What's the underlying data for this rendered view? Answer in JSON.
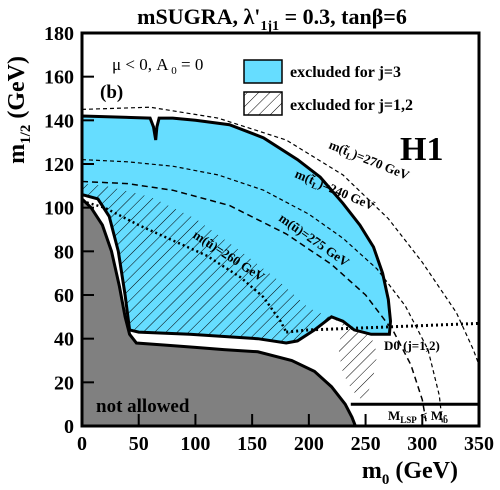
{
  "chart_data": {
    "type": "area",
    "title_main": "mSUGRA, λ'",
    "title_sub": "1j1",
    "title_tail": " = 0.3, tanβ=6",
    "xlabel_main": "m",
    "xlabel_sub": "0",
    "xlabel_tail": " (GeV)",
    "ylabel_main": "m",
    "ylabel_sub": "1/2",
    "ylabel_tail": " (GeV)",
    "xlim": [
      0,
      350
    ],
    "ylim": [
      0,
      180
    ],
    "x_ticks": [
      0,
      50,
      100,
      150,
      200,
      250,
      300,
      350
    ],
    "y_ticks": [
      0,
      20,
      40,
      60,
      80,
      100,
      120,
      140,
      160,
      180
    ],
    "params_label": "μ < 0, A 0 = 0",
    "panel_label": "(b)",
    "experiment_label": "H1",
    "legend": [
      {
        "name": "excluded for j=3",
        "style": "fill",
        "color": "#66ddff"
      },
      {
        "name": "excluded for j=1,2",
        "style": "hatch"
      }
    ],
    "colors": {
      "excluded_j3": "#66ddff",
      "not_allowed": "#808080",
      "frame": "#000000"
    },
    "regions": {
      "excluded_j3": [
        [
          0,
          142
        ],
        [
          60,
          141
        ],
        [
          63,
          137
        ],
        [
          65,
          131
        ],
        [
          66,
          137
        ],
        [
          68,
          141
        ],
        [
          80,
          141
        ],
        [
          100,
          140
        ],
        [
          130,
          138
        ],
        [
          160,
          132
        ],
        [
          190,
          122
        ],
        [
          210,
          114
        ],
        [
          230,
          102
        ],
        [
          245,
          92
        ],
        [
          257,
          82
        ],
        [
          265,
          70
        ],
        [
          270,
          58
        ],
        [
          272,
          48
        ],
        [
          271,
          42
        ],
        [
          255,
          42
        ],
        [
          240,
          44
        ],
        [
          230,
          48
        ],
        [
          220,
          50
        ],
        [
          205,
          44
        ],
        [
          190,
          39
        ],
        [
          180,
          38
        ],
        [
          155,
          40
        ],
        [
          95,
          42
        ],
        [
          50,
          43
        ],
        [
          42,
          44
        ],
        [
          38,
          60
        ],
        [
          32,
          80
        ],
        [
          24,
          96
        ],
        [
          14,
          104
        ],
        [
          0,
          106
        ]
      ],
      "excluded_j12": [
        [
          0,
          111
        ],
        [
          20,
          110
        ],
        [
          60,
          105
        ],
        [
          100,
          95
        ],
        [
          140,
          80
        ],
        [
          170,
          68
        ],
        [
          200,
          54
        ],
        [
          222,
          49
        ],
        [
          230,
          46
        ],
        [
          226,
          36
        ],
        [
          229,
          26
        ],
        [
          234,
          20
        ],
        [
          239,
          16
        ],
        [
          244,
          13
        ],
        [
          248,
          12
        ],
        [
          252,
          15
        ],
        [
          257,
          23
        ],
        [
          260,
          32
        ],
        [
          258,
          38
        ],
        [
          252,
          42
        ],
        [
          240,
          44
        ],
        [
          230,
          48
        ],
        [
          220,
          50
        ],
        [
          205,
          44
        ],
        [
          190,
          39
        ],
        [
          180,
          38
        ],
        [
          155,
          40
        ],
        [
          95,
          42
        ],
        [
          50,
          43
        ],
        [
          42,
          44
        ],
        [
          38,
          60
        ],
        [
          32,
          80
        ],
        [
          24,
          96
        ],
        [
          14,
          104
        ],
        [
          0,
          106
        ]
      ],
      "not_allowed": [
        [
          0,
          104
        ],
        [
          8,
          100
        ],
        [
          18,
          92
        ],
        [
          26,
          80
        ],
        [
          33,
          64
        ],
        [
          38,
          50
        ],
        [
          42,
          42
        ],
        [
          48,
          38
        ],
        [
          75,
          37
        ],
        [
          100,
          36
        ],
        [
          125,
          35
        ],
        [
          155,
          34
        ],
        [
          185,
          30
        ],
        [
          205,
          25
        ],
        [
          220,
          18
        ],
        [
          232,
          10
        ],
        [
          238,
          4
        ],
        [
          241,
          0
        ],
        [
          0,
          0
        ]
      ]
    },
    "annotations": [
      {
        "text": "m(t̃",
        "sub": "L",
        "tail": ")=270 GeV"
      },
      {
        "text": "m(t̃",
        "sub": "L",
        "tail": ")=240 GeV"
      },
      {
        "text": "m(ũ)=275 GeV"
      },
      {
        "text": "m(ũ)=260 GeV"
      },
      {
        "text": "D0 (j=1,2)"
      },
      {
        "text": "M",
        "sub": "LSP",
        "mid": " < M",
        "sub2": "b",
        "tilde": true
      },
      {
        "text": "not allowed"
      }
    ],
    "curves": {
      "stop_270": [
        [
          0,
          145
        ],
        [
          60,
          146
        ],
        [
          120,
          141
        ],
        [
          180,
          131
        ],
        [
          230,
          115
        ],
        [
          270,
          95
        ],
        [
          300,
          75
        ],
        [
          330,
          52
        ],
        [
          345,
          35
        ],
        [
          350,
          28
        ]
      ],
      "stop_240": [
        [
          0,
          112
        ],
        [
          40,
          111
        ],
        [
          80,
          108
        ],
        [
          130,
          101
        ],
        [
          180,
          88
        ],
        [
          220,
          74
        ],
        [
          250,
          60
        ],
        [
          275,
          43
        ],
        [
          290,
          28
        ],
        [
          300,
          12
        ],
        [
          304,
          0
        ]
      ],
      "sup_275": [
        [
          0,
          122
        ],
        [
          40,
          121
        ],
        [
          80,
          119
        ],
        [
          120,
          115
        ],
        [
          160,
          108
        ],
        [
          200,
          97
        ],
        [
          230,
          86
        ],
        [
          260,
          72
        ],
        [
          285,
          55
        ],
        [
          305,
          35
        ],
        [
          315,
          14
        ],
        [
          318,
          0
        ]
      ],
      "sup_260": [
        [
          0,
          103
        ],
        [
          20,
          100
        ],
        [
          50,
          92
        ],
        [
          80,
          85
        ],
        [
          110,
          78
        ],
        [
          140,
          68
        ],
        [
          160,
          59
        ],
        [
          175,
          48
        ],
        [
          180,
          43
        ]
      ],
      "d0": [
        [
          180,
          43
        ],
        [
          200,
          44
        ],
        [
          250,
          45
        ],
        [
          300,
          46
        ],
        [
          350,
          47
        ]
      ],
      "lsp_boundary": [
        [
          237,
          10
        ],
        [
          350,
          10
        ]
      ]
    }
  }
}
